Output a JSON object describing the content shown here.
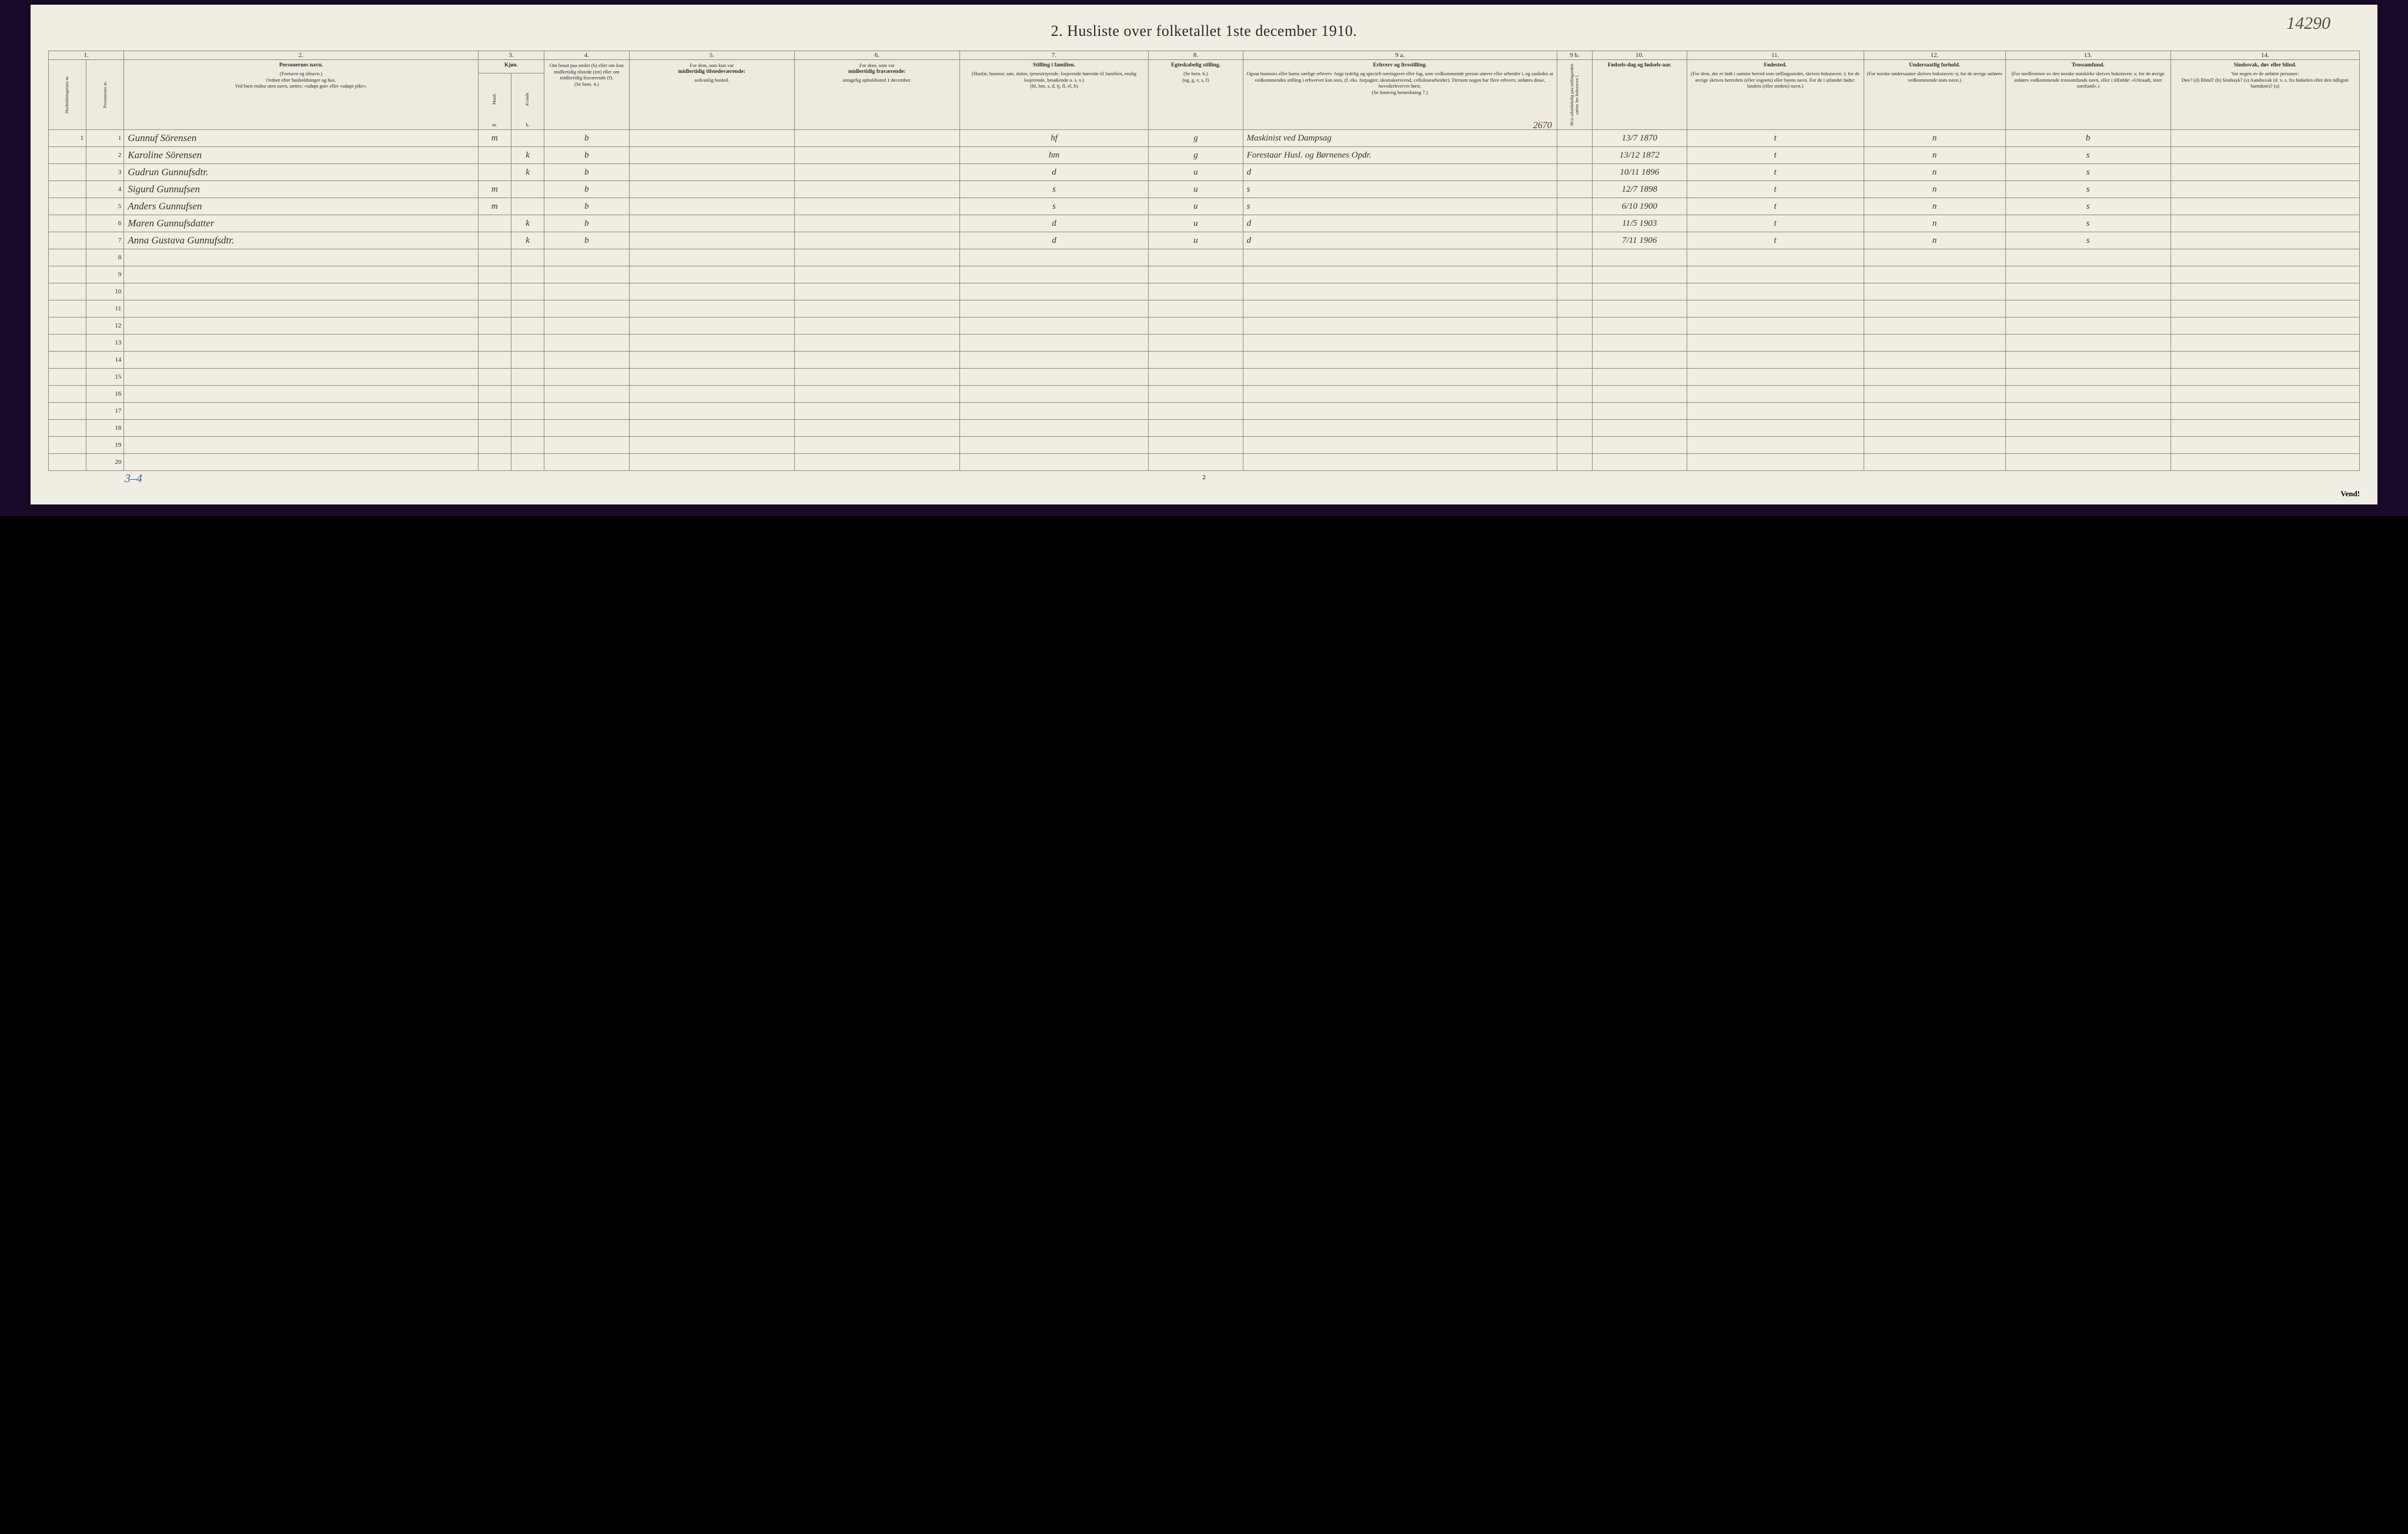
{
  "document": {
    "title": "2.  Husliste over folketallet 1ste december 1910.",
    "page_number_top_right": "14290",
    "footer_left_blue": "3–4",
    "footer_center": "2",
    "footer_right": "Vend!",
    "background_color": "#f0ede3",
    "border_color": "#8a8a7a",
    "ink_color": "#3a332a",
    "blue_ink": "#3a60a8"
  },
  "columns": {
    "numbers": [
      "1.",
      "2.",
      "3.",
      "4.",
      "5.",
      "6.",
      "7.",
      "8.",
      "9 a.",
      "9 b.",
      "10.",
      "11.",
      "12.",
      "13.",
      "14."
    ],
    "c1a_vert": "Husholdningernes nr.",
    "c1b_vert": "Personernes nr.",
    "c2": {
      "bold": "Personernes navn.",
      "line1": "(Fornavn og tilnavn.)",
      "line2": "Ordnet efter husholdninger og hus.",
      "line3": "Ved barn endnu uten navn, sættes: «udøpt gut» eller «udøpt pike»."
    },
    "c3": {
      "bold": "Kjøn.",
      "sub_m": "Mand.",
      "sub_k": "Kvinde.",
      "foot_m": "m.",
      "foot_k": "k."
    },
    "c4": {
      "line1": "Om bosat paa stedet (b) eller om kun midlertidig tilstede (mt) eller om midlertidig fraværende (f).",
      "foot": "(Se bem. 4.)"
    },
    "c5": {
      "line1": "For dem, som kun var",
      "bold": "midlertidig tilstedeværende:",
      "line2": "sedvanlig bosted."
    },
    "c6": {
      "line1": "For dem, som var",
      "bold": "midlertidig fraværende:",
      "line2": "antagelig opholdssted 1 december."
    },
    "c7": {
      "bold": "Stilling i familien.",
      "line1": "(Husfar, husmor, søn, datter, tjenestetyende, losjerende hørende til familien, enslig losjerende, besøkende o. s. v.)",
      "foot": "(hf, hm, s, d, tj, fl, el, b)"
    },
    "c8": {
      "bold": "Egteskabelig stilling.",
      "foot1": "(Se bem. 6.)",
      "foot2": "(ug, g, e, s, f)"
    },
    "c9a": {
      "bold": "Erhverv og livsstilling.",
      "line1": "Ogsaa husmors eller barns særlige erhverv. Angi tydelig og specielt næringsvei eller fag, som vedkommende person utøver eller arbeider i, og saaledes at vedkommendes stilling i erhvervet kan sees, (f. eks. forpagter, skomakersvend, cellulosearbeider). Dersom nogen har flere erhverv, anføres disse, hovederhvervet først.",
      "foot": "(Se forøvrig bemerkning 7.)"
    },
    "c9b_vert": "Hvis arbeidsledig paa tællingstiden sættes her bokstaven l.",
    "c10": {
      "bold": "Fødsels-dag og fødsels-aar."
    },
    "c11": {
      "bold": "Fødested.",
      "line1": "(For dem, der er født i samme herred som tællingsstedet, skrives bokstaven: t; for de øvrige skrives herredets (eller sognets) eller byens navn. For de i utlandet fødte: landets (eller stedets) navn.)"
    },
    "c12": {
      "bold": "Undersaatlig forhold.",
      "line1": "(For norske undersaatter skrives bokstaven: n; for de øvrige anføres vedkommende stats navn.)"
    },
    "c13": {
      "bold": "Trossamfund.",
      "line1": "(For medlemmer av den norske statskirke skrives bokstaven: s; for de øvrige anføres vedkommende trossamfunds navn, eller i tilfælde: «Uttraadt, intet samfund».)"
    },
    "c14": {
      "bold": "Sindssvak, døv eller blind.",
      "line1": "Var nogen av de anførte personer:",
      "line2": "Døv? (d)  Blind? (b)  Sindssyk? (s)  Aandssvak (d. v. s. fra fødselen eller den tidligste barndom)? (a)"
    }
  },
  "annotation_above_row1": "2670",
  "rows": [
    {
      "hh": "1",
      "pn": "1",
      "name": "Gunnuf Sörensen",
      "m": "m",
      "k": "",
      "res": "b",
      "c5": "",
      "c6": "",
      "fam": "hf",
      "mar": "g",
      "occ": "Maskinist ved Dampsag",
      "c9b": "",
      "dob": "13/7 1870",
      "birthplace": "t",
      "nat": "n",
      "rel": "b",
      "c14": ""
    },
    {
      "hh": "",
      "pn": "2",
      "name": "Karoline Sörensen",
      "m": "",
      "k": "k",
      "res": "b",
      "c5": "",
      "c6": "",
      "fam": "hm",
      "mar": "g",
      "occ": "Forestaar Husl. og Børnenes Opdr.",
      "c9b": "",
      "dob": "13/12 1872",
      "birthplace": "t",
      "nat": "n",
      "rel": "s",
      "c14": ""
    },
    {
      "hh": "",
      "pn": "3",
      "name": "Gudrun Gunnufsdtr.",
      "m": "",
      "k": "k",
      "res": "b",
      "c5": "",
      "c6": "",
      "fam": "d",
      "mar": "u",
      "occ": "d",
      "c9b": "",
      "dob": "10/11 1896",
      "birthplace": "t",
      "nat": "n",
      "rel": "s",
      "c14": ""
    },
    {
      "hh": "",
      "pn": "4",
      "name": "Sigurd Gunnufsen",
      "m": "m",
      "k": "",
      "res": "b",
      "c5": "",
      "c6": "",
      "fam": "s",
      "mar": "u",
      "occ": "s",
      "c9b": "",
      "dob": "12/7 1898",
      "birthplace": "t",
      "nat": "n",
      "rel": "s",
      "c14": ""
    },
    {
      "hh": "",
      "pn": "5",
      "name": "Anders Gunnufsen",
      "m": "m",
      "k": "",
      "res": "b",
      "c5": "",
      "c6": "",
      "fam": "s",
      "mar": "u",
      "occ": "s",
      "c9b": "",
      "dob": "6/10 1900",
      "birthplace": "t",
      "nat": "n",
      "rel": "s",
      "c14": ""
    },
    {
      "hh": "",
      "pn": "6",
      "name": "Maren Gunnufsdatter",
      "m": "",
      "k": "k",
      "res": "b",
      "c5": "",
      "c6": "",
      "fam": "d",
      "mar": "u",
      "occ": "d",
      "c9b": "",
      "dob": "11/5 1903",
      "birthplace": "t",
      "nat": "n",
      "rel": "s",
      "c14": ""
    },
    {
      "hh": "",
      "pn": "7",
      "name": "Anna Gustava Gunnufsdtr.",
      "m": "",
      "k": "k",
      "res": "b",
      "c5": "",
      "c6": "",
      "fam": "d",
      "mar": "u",
      "occ": "d",
      "c9b": "",
      "dob": "7/11 1906",
      "birthplace": "t",
      "nat": "n",
      "rel": "s",
      "c14": ""
    }
  ],
  "empty_rows_start": 8,
  "empty_rows_end": 20
}
